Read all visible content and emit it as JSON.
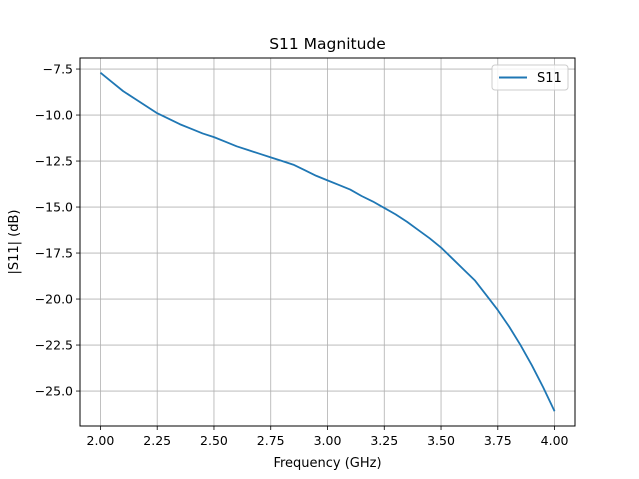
{
  "chart_data": {
    "type": "line",
    "title": "S11 Magnitude",
    "xlabel": "Frequency (GHz)",
    "ylabel": "|S11| (dB)",
    "xlim": [
      1.91,
      4.09
    ],
    "ylim": [
      -26.9,
      -6.9
    ],
    "xticks": [
      2.0,
      2.25,
      2.5,
      2.75,
      3.0,
      3.25,
      3.5,
      3.75,
      4.0
    ],
    "xtick_labels": [
      "2.00",
      "2.25",
      "2.50",
      "2.75",
      "3.00",
      "3.25",
      "3.50",
      "3.75",
      "4.00"
    ],
    "yticks": [
      -7.5,
      -10.0,
      -12.5,
      -15.0,
      -17.5,
      -20.0,
      -22.5,
      -25.0
    ],
    "ytick_labels": [
      "−7.5",
      "−10.0",
      "−12.5",
      "−15.0",
      "−17.5",
      "−20.0",
      "−22.5",
      "−25.0"
    ],
    "grid": true,
    "legend": "top-right",
    "colors": {
      "series": "#1f77b4"
    },
    "series": [
      {
        "name": "S11",
        "x": [
          2.0,
          2.05,
          2.1,
          2.15,
          2.2,
          2.25,
          2.3,
          2.35,
          2.4,
          2.45,
          2.5,
          2.55,
          2.6,
          2.65,
          2.7,
          2.75,
          2.8,
          2.85,
          2.9,
          2.95,
          3.0,
          3.05,
          3.1,
          3.15,
          3.2,
          3.25,
          3.3,
          3.35,
          3.4,
          3.45,
          3.5,
          3.55,
          3.6,
          3.65,
          3.7,
          3.75,
          3.8,
          3.85,
          3.9,
          3.95,
          4.0
        ],
        "y": [
          -7.7,
          -8.2,
          -8.7,
          -9.1,
          -9.5,
          -9.9,
          -10.2,
          -10.5,
          -10.75,
          -11.0,
          -11.2,
          -11.45,
          -11.7,
          -11.9,
          -12.1,
          -12.3,
          -12.5,
          -12.7,
          -13.0,
          -13.3,
          -13.55,
          -13.8,
          -14.05,
          -14.4,
          -14.7,
          -15.05,
          -15.4,
          -15.8,
          -16.25,
          -16.7,
          -17.2,
          -17.8,
          -18.4,
          -19.0,
          -19.8,
          -20.6,
          -21.5,
          -22.5,
          -23.6,
          -24.8,
          -26.1
        ]
      }
    ]
  }
}
